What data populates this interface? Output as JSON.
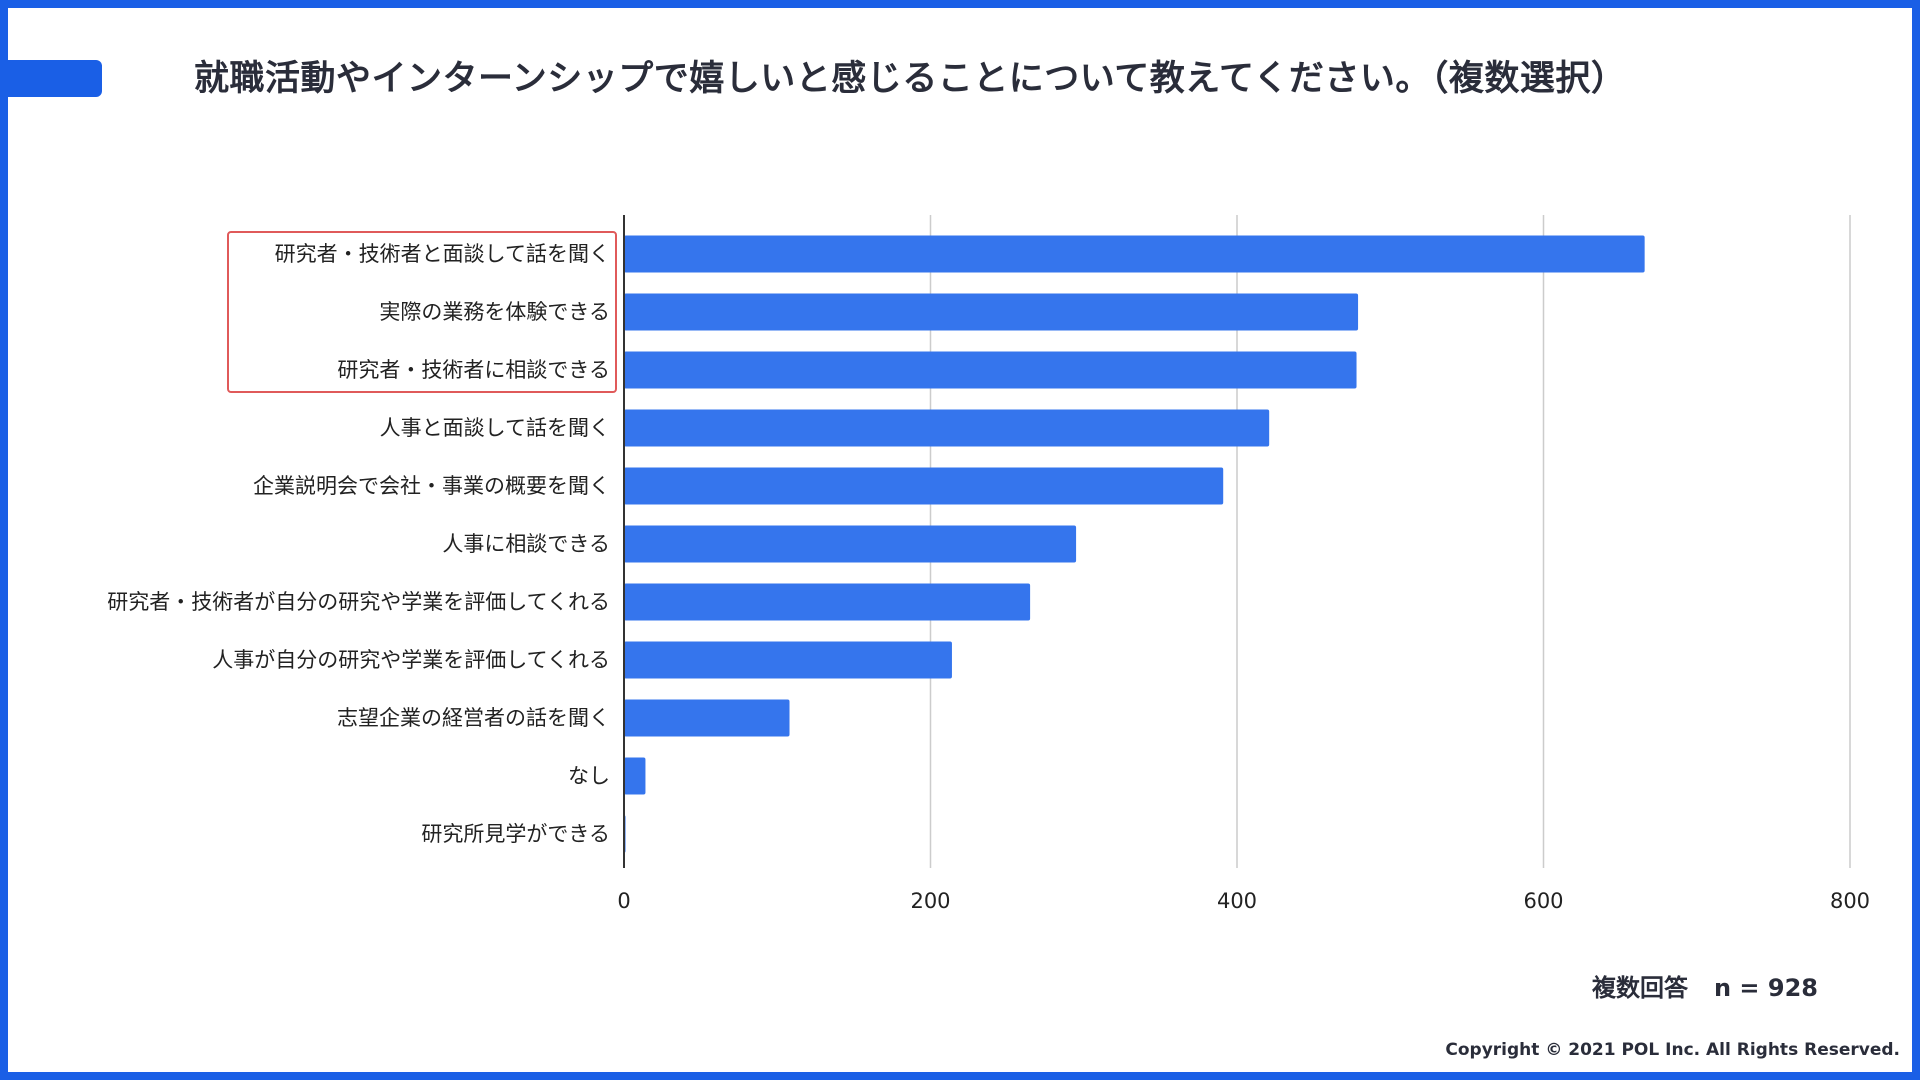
{
  "title": "就職活動やインターンシップで嬉しいと感じることについて教えてください。（複数選択）",
  "note": {
    "answer_type": "複数回答",
    "sample": "n = 928"
  },
  "copyright": "Copyright © 2021 POL Inc. All Rights Reserved.",
  "colors": {
    "accent": "#1a5fe6",
    "bar": "#3575ed",
    "highlight": "#e05a5a",
    "grid": "#cccccc"
  },
  "chart_data": {
    "type": "bar",
    "orientation": "horizontal",
    "title": "就職活動やインターンシップで嬉しいと感じることについて教えてください。（複数選択）",
    "xlabel": "",
    "ylabel": "",
    "xlim": [
      0,
      800
    ],
    "ticks": [
      0,
      200,
      400,
      600,
      800
    ],
    "grid": true,
    "categories": [
      "研究者・技術者と面談して話を聞く",
      "実際の業務を体験できる",
      "研究者・技術者に相談できる",
      "人事と面談して話を聞く",
      "企業説明会で会社・事業の概要を聞く",
      "人事に相談できる",
      "研究者・技術者が自分の研究や学業を評価してくれる",
      "人事が自分の研究や学業を評価してくれる",
      "志望企業の経営者の話を聞く",
      "なし",
      "研究所見学ができる"
    ],
    "values": [
      666,
      479,
      478,
      421,
      391,
      295,
      265,
      214,
      108,
      14,
      1
    ],
    "highlighted_categories": [
      0,
      1,
      2
    ]
  }
}
